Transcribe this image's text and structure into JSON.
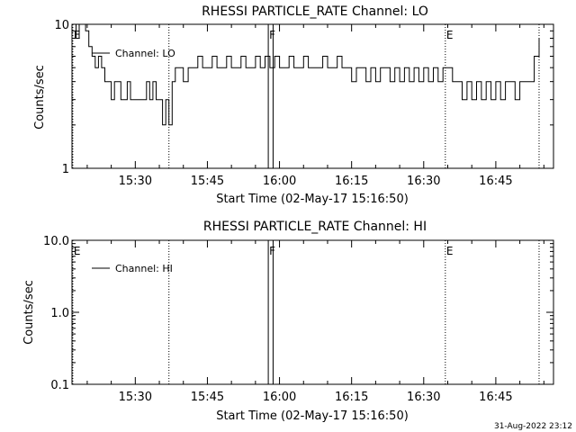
{
  "footer": {
    "timestamp": "31-Aug-2022 23:12"
  },
  "chart_data": [
    {
      "type": "line",
      "title": "RHESSI PARTICLE_RATE Channel: LO",
      "xlabel": "Start Time (02-May-17 15:16:50)",
      "ylabel": "Counts/sec",
      "y_scale": "log",
      "ylim": [
        1,
        10
      ],
      "xlim": [
        "15:16:50",
        "16:57:00"
      ],
      "x_ticks": [
        "15:30",
        "15:45",
        "16:00",
        "16:15",
        "16:30",
        "16:45"
      ],
      "y_ticks": [
        "1",
        "10"
      ],
      "legend": {
        "entries": [
          "Channel: LO"
        ],
        "placement": "top-left"
      },
      "markers": [
        {
          "label": "E",
          "time": "15:17:00",
          "style": "dotted"
        },
        {
          "label": "",
          "time": "15:37:00",
          "style": "dotted"
        },
        {
          "label": "F",
          "time": "15:57:40",
          "style": "solid"
        },
        {
          "label": "",
          "time": "15:58:40",
          "style": "solid"
        },
        {
          "label": "E",
          "time": "16:34:30",
          "style": "dotted"
        },
        {
          "label": "",
          "time": "16:54:00",
          "style": "dotted"
        }
      ],
      "series": [
        {
          "name": "Channel: LO",
          "x": [
            "15:17:00",
            "15:17:40",
            "15:18:20",
            "15:19:00",
            "15:19:40",
            "15:20:20",
            "15:21:00",
            "15:21:40",
            "15:22:20",
            "15:23:00",
            "15:23:40",
            "15:24:20",
            "15:25:00",
            "15:25:40",
            "15:26:20",
            "15:27:00",
            "15:27:40",
            "15:28:20",
            "15:29:00",
            "15:29:40",
            "15:30:20",
            "15:31:00",
            "15:31:40",
            "15:32:20",
            "15:33:00",
            "15:33:40",
            "15:34:20",
            "15:35:00",
            "15:35:40",
            "15:36:20",
            "15:37:00",
            "15:37:40",
            "15:38:20",
            "15:39:00",
            "15:40:00",
            "15:41:00",
            "15:42:00",
            "15:43:00",
            "15:44:00",
            "15:45:00",
            "15:46:00",
            "15:47:00",
            "15:48:00",
            "15:49:00",
            "15:50:00",
            "15:51:00",
            "15:52:00",
            "15:53:00",
            "15:54:00",
            "15:55:00",
            "15:56:00",
            "15:57:00",
            "15:58:00",
            "15:59:00",
            "16:00:00",
            "16:01:00",
            "16:02:00",
            "16:03:00",
            "16:04:00",
            "16:05:00",
            "16:06:00",
            "16:07:00",
            "16:08:00",
            "16:09:00",
            "16:10:00",
            "16:11:00",
            "16:12:00",
            "16:13:00",
            "16:14:00",
            "16:15:00",
            "16:16:00",
            "16:17:00",
            "16:18:00",
            "16:19:00",
            "16:20:00",
            "16:21:00",
            "16:22:00",
            "16:23:00",
            "16:24:00",
            "16:25:00",
            "16:26:00",
            "16:27:00",
            "16:28:00",
            "16:29:00",
            "16:30:00",
            "16:31:00",
            "16:32:00",
            "16:33:00",
            "16:34:00",
            "16:35:00",
            "16:36:00",
            "16:37:00",
            "16:38:00",
            "16:39:00",
            "16:40:00",
            "16:41:00",
            "16:42:00",
            "16:43:00",
            "16:44:00",
            "16:45:00",
            "16:46:00",
            "16:47:00",
            "16:48:00",
            "16:49:00",
            "16:50:00",
            "16:51:00",
            "16:52:00",
            "16:53:00",
            "16:54:00"
          ],
          "values": [
            10,
            8,
            10,
            10,
            9,
            7,
            6,
            5,
            6,
            5,
            4,
            4,
            3,
            4,
            4,
            3,
            3,
            4,
            3,
            3,
            3,
            3,
            3,
            4,
            3,
            4,
            3,
            3,
            2,
            3,
            2,
            4,
            5,
            5,
            4,
            5,
            5,
            6,
            5,
            5,
            6,
            5,
            5,
            6,
            5,
            5,
            6,
            5,
            5,
            6,
            5,
            6,
            5,
            6,
            5,
            5,
            6,
            5,
            5,
            6,
            5,
            5,
            5,
            6,
            5,
            5,
            6,
            5,
            5,
            4,
            5,
            5,
            4,
            5,
            4,
            5,
            5,
            4,
            5,
            4,
            5,
            4,
            5,
            4,
            5,
            4,
            5,
            4,
            5,
            5,
            4,
            4,
            3,
            4,
            3,
            4,
            3,
            4,
            3,
            4,
            3,
            4,
            4,
            3,
            4,
            4,
            4,
            6,
            8
          ]
        }
      ]
    },
    {
      "type": "line",
      "title": "RHESSI PARTICLE_RATE Channel: HI",
      "xlabel": "Start Time (02-May-17 15:16:50)",
      "ylabel": "Counts/sec",
      "y_scale": "log",
      "ylim": [
        0.1,
        10
      ],
      "xlim": [
        "15:16:50",
        "16:57:00"
      ],
      "x_ticks": [
        "15:30",
        "15:45",
        "16:00",
        "16:15",
        "16:30",
        "16:45"
      ],
      "y_ticks": [
        "0.1",
        "1.0",
        "10.0"
      ],
      "legend": {
        "entries": [
          "Channel: HI"
        ],
        "placement": "top-left"
      },
      "markers": [
        {
          "label": "E",
          "time": "15:17:00",
          "style": "dotted"
        },
        {
          "label": "",
          "time": "15:37:00",
          "style": "dotted"
        },
        {
          "label": "F",
          "time": "15:57:40",
          "style": "solid"
        },
        {
          "label": "",
          "time": "15:58:40",
          "style": "solid"
        },
        {
          "label": "E",
          "time": "16:34:30",
          "style": "dotted"
        },
        {
          "label": "",
          "time": "16:54:00",
          "style": "dotted"
        }
      ],
      "series": [
        {
          "name": "Channel: HI",
          "x": [],
          "values": []
        }
      ]
    }
  ]
}
